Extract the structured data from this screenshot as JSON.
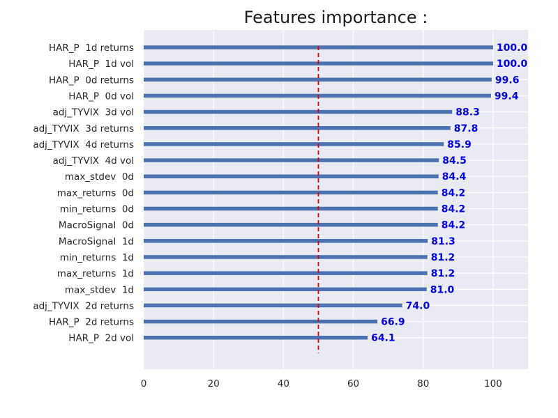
{
  "chart_data": {
    "type": "bar",
    "orientation": "horizontal",
    "title": "Features importance :",
    "xlabel": "",
    "ylabel": "",
    "xlim": [
      0,
      110
    ],
    "xticks": [
      0,
      20,
      40,
      60,
      80,
      100
    ],
    "grid": true,
    "categories": [
      "HAR_P  1d returns",
      "HAR_P  1d vol",
      "HAR_P  0d returns",
      "HAR_P  0d vol",
      "adj_TYVIX  3d vol",
      "adj_TYVIX  3d returns",
      "adj_TYVIX  4d returns",
      "adj_TYVIX  4d vol",
      "max_stdev  0d",
      "max_returns  0d",
      "min_returns  0d",
      "MacroSignal  0d",
      "MacroSignal  1d",
      "min_returns  1d",
      "max_returns  1d",
      "max_stdev  1d",
      "adj_TYVIX  2d returns",
      "HAR_P  2d returns",
      "HAR_P  2d vol"
    ],
    "values": [
      100.0,
      100.0,
      99.6,
      99.4,
      88.3,
      87.8,
      85.9,
      84.5,
      84.4,
      84.2,
      84.2,
      84.2,
      81.3,
      81.2,
      81.2,
      81.0,
      74.0,
      66.9,
      64.1
    ],
    "value_labels": [
      "100.0",
      "100.0",
      "99.6",
      "99.4",
      "88.3",
      "87.8",
      "85.9",
      "84.5",
      "84.4",
      "84.2",
      "84.2",
      "84.2",
      "81.3",
      "81.2",
      "81.2",
      "81.0",
      "74.0",
      "66.9",
      "64.1"
    ],
    "reference_line": {
      "x": 50,
      "style": "dashed"
    },
    "colors": {
      "bar": "#4c72b0",
      "label": "#0000ee",
      "reference_line": "#e00000",
      "plot_background": "#eaeaf2",
      "grid": "#ffffff"
    }
  }
}
